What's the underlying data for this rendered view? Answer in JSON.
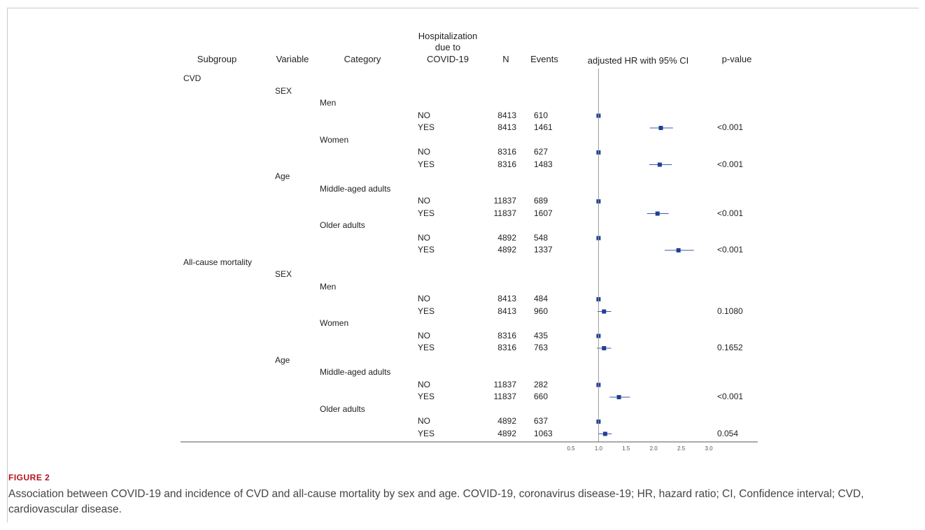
{
  "figure": {
    "label": "FIGURE 2",
    "caption": "Association between COVID-19 and incidence of CVD and all-cause mortality by sex and age. COVID-19, coronavirus disease-19; HR, hazard ratio; CI, Confidence interval; CVD, cardiovascular disease."
  },
  "headers": {
    "subgroup": "Subgroup",
    "variable": "Variable",
    "category": "Category",
    "hosp_l1": "Hospitalization",
    "hosp_l2": "due to",
    "hosp_l3": "COVID-19",
    "n": "N",
    "events": "Events",
    "hr": "adjusted HR with 95% CI",
    "p": "p-value"
  },
  "chart_data": {
    "type": "forest",
    "x_ticks": [
      "0.5",
      "1.0",
      "1.5",
      "2.0",
      "2.5",
      "3.0"
    ],
    "xlim": [
      0.5,
      3.0
    ],
    "reference_line": 1.0,
    "rows": [
      {
        "col": "subgroup",
        "text": "CVD"
      },
      {
        "col": "variable",
        "text": "SEX"
      },
      {
        "col": "category",
        "text": "Men"
      },
      {
        "col": "hosp",
        "text": "NO",
        "n": "8413",
        "events": "610",
        "hr": 1.0
      },
      {
        "col": "hosp",
        "text": "YES",
        "n": "8413",
        "events": "1461",
        "hr": 2.13,
        "lo": 1.93,
        "hi": 2.35,
        "p": "<0.001"
      },
      {
        "col": "category",
        "text": "Women"
      },
      {
        "col": "hosp",
        "text": "NO",
        "n": "8316",
        "events": "627",
        "hr": 1.0
      },
      {
        "col": "hosp",
        "text": "YES",
        "n": "8316",
        "events": "1483",
        "hr": 2.11,
        "lo": 1.92,
        "hi": 2.33,
        "p": "<0.001"
      },
      {
        "col": "variable",
        "text": "Age"
      },
      {
        "col": "category",
        "text": "Middle-aged adults"
      },
      {
        "col": "hosp",
        "text": "NO",
        "n": "11837",
        "events": "689",
        "hr": 1.0
      },
      {
        "col": "hosp",
        "text": "YES",
        "n": "11837",
        "events": "1607",
        "hr": 2.07,
        "lo": 1.88,
        "hi": 2.27,
        "p": "<0.001"
      },
      {
        "col": "category",
        "text": "Older adults"
      },
      {
        "col": "hosp",
        "text": "NO",
        "n": "4892",
        "events": "548",
        "hr": 1.0
      },
      {
        "col": "hosp",
        "text": "YES",
        "n": "4892",
        "events": "1337",
        "hr": 2.45,
        "lo": 2.2,
        "hi": 2.73,
        "p": "<0.001"
      },
      {
        "col": "subgroup",
        "text": "All-cause mortality"
      },
      {
        "col": "variable",
        "text": "SEX"
      },
      {
        "col": "category",
        "text": "Men"
      },
      {
        "col": "hosp",
        "text": "NO",
        "n": "8413",
        "events": "484",
        "hr": 1.0
      },
      {
        "col": "hosp",
        "text": "YES",
        "n": "8413",
        "events": "960",
        "hr": 1.1,
        "lo": 0.98,
        "hi": 1.23,
        "p": "0.1080"
      },
      {
        "col": "category",
        "text": "Women"
      },
      {
        "col": "hosp",
        "text": "NO",
        "n": "8316",
        "events": "435",
        "hr": 1.0
      },
      {
        "col": "hosp",
        "text": "YES",
        "n": "8316",
        "events": "763",
        "hr": 1.1,
        "lo": 0.97,
        "hi": 1.23,
        "p": "0.1652"
      },
      {
        "col": "variable",
        "text": "Age"
      },
      {
        "col": "category",
        "text": "Middle-aged adults"
      },
      {
        "col": "hosp",
        "text": "NO",
        "n": "11837",
        "events": "282",
        "hr": 1.0
      },
      {
        "col": "hosp",
        "text": "YES",
        "n": "11837",
        "events": "660",
        "hr": 1.37,
        "lo": 1.2,
        "hi": 1.57,
        "p": "<0.001"
      },
      {
        "col": "category",
        "text": "Older adults"
      },
      {
        "col": "hosp",
        "text": "NO",
        "n": "4892",
        "events": "637",
        "hr": 1.0
      },
      {
        "col": "hosp",
        "text": "YES",
        "n": "4892",
        "events": "1063",
        "hr": 1.12,
        "lo": 1.0,
        "hi": 1.24,
        "p": "0.054"
      }
    ]
  }
}
